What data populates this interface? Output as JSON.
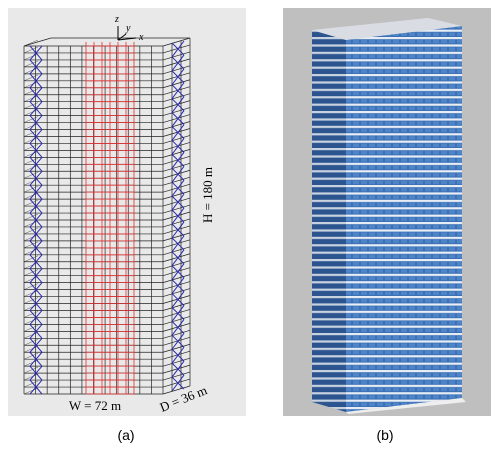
{
  "figure": {
    "panel_a": {
      "axes": {
        "z": "z",
        "y": "y",
        "x": "x"
      },
      "height_label": "H = 180 m",
      "width_label": "W = 72 m",
      "depth_label": "D = 36 m",
      "caption": "(a)"
    },
    "panel_b": {
      "caption": "(b)"
    }
  }
}
